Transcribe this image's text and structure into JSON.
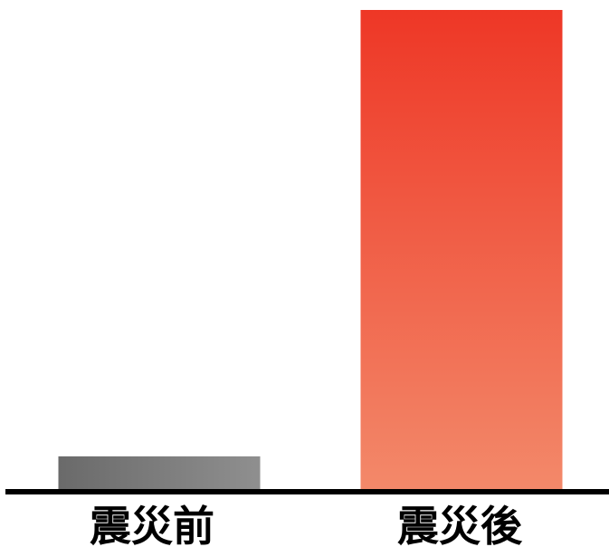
{
  "chart_data": {
    "type": "bar",
    "categories": [
      "震災前",
      "震災後"
    ],
    "values": [
      7,
      100
    ],
    "title": "",
    "xlabel": "",
    "ylabel": "",
    "ylim": [
      0,
      100
    ],
    "grid": false,
    "legend": "none",
    "colors": {
      "before_start": "#6a6a6a",
      "before_end": "#8f8f8f",
      "after_top": "#ee3726",
      "after_bottom": "#f3896a",
      "axis": "#000000"
    }
  }
}
